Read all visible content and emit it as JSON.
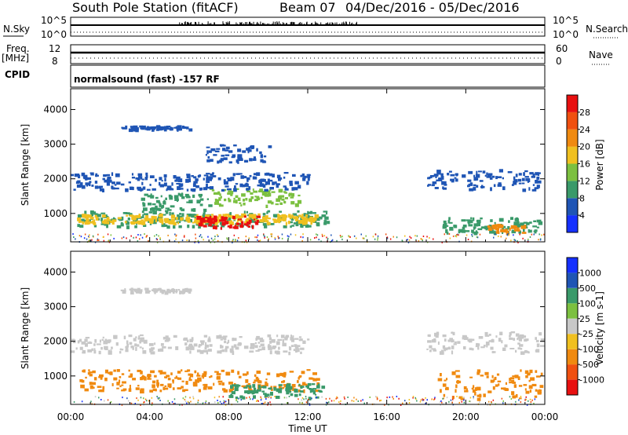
{
  "header": {
    "station": "South Pole Station (fitACF)",
    "beam": "Beam 07",
    "dates": "04/Dec/2016 - 05/Dec/2016"
  },
  "strips": {
    "nsky_label": "N.Sky",
    "nsky_tick_hi": "10^5",
    "nsky_tick_lo": "10^0",
    "nsearch_label": "N.Search",
    "nsearch_tick_hi": "10^5",
    "nsearch_tick_lo": "10^0",
    "freq_label": "Freq.",
    "freq_unit": "[MHz]",
    "freq_tick_hi": "12",
    "freq_tick_lo": "8",
    "nave_label": "Nave",
    "nave_tick_hi": "60",
    "nave_tick_lo": "0",
    "cpid_label": "CPID",
    "cpid_value": "normalsound (fast) -157 RF"
  },
  "chart_data": [
    {
      "type": "heatmap",
      "name": "power",
      "ylabel": "Slant Range [km]",
      "xlabel": "",
      "x_ticks": [
        "00:00",
        "04:00",
        "08:00",
        "12:00",
        "16:00",
        "20:00",
        "00:00"
      ],
      "x_tick_hours": [
        0,
        4,
        8,
        12,
        16,
        20,
        24
      ],
      "y_ticks": [
        1000,
        2000,
        3000,
        4000
      ],
      "ylim": [
        180,
        4600
      ],
      "xlim_hours": [
        0,
        24
      ],
      "colorbar": {
        "label": "Power [dB]",
        "ticks": [
          "4",
          "8",
          "12",
          "16",
          "20",
          "24",
          "28"
        ],
        "colors": [
          "#1530ff",
          "#1f55b5",
          "#3a9a6a",
          "#7cc040",
          "#f0c020",
          "#f08a10",
          "#f05010",
          "#e81010"
        ]
      },
      "bands": [
        {
          "x0": 0.3,
          "x1": 13.0,
          "r0": 650,
          "r1": 1100,
          "color": "#3a9a6a"
        },
        {
          "x0": 0.3,
          "x1": 12.5,
          "r0": 750,
          "r1": 1000,
          "color": "#f0c020"
        },
        {
          "x0": 6.3,
          "x1": 9.5,
          "r0": 600,
          "r1": 950,
          "color": "#e81010"
        },
        {
          "x0": 3.5,
          "x1": 7.0,
          "r0": 1100,
          "r1": 1600,
          "color": "#3a9a6a"
        },
        {
          "x0": 7.0,
          "x1": 11.5,
          "r0": 1250,
          "r1": 1750,
          "color": "#7cc040"
        },
        {
          "x0": 0.0,
          "x1": 12.0,
          "r0": 1700,
          "r1": 2200,
          "color": "#1f55b5"
        },
        {
          "x0": 2.5,
          "x1": 6.0,
          "r0": 3450,
          "r1": 3550,
          "color": "#1f55b5"
        },
        {
          "x0": 6.8,
          "x1": 10.0,
          "r0": 2500,
          "r1": 3000,
          "color": "#1f55b5"
        },
        {
          "x0": 18.0,
          "x1": 23.8,
          "r0": 1700,
          "r1": 2300,
          "color": "#1f55b5"
        },
        {
          "x0": 18.5,
          "x1": 23.8,
          "r0": 450,
          "r1": 900,
          "color": "#3a9a6a"
        },
        {
          "x0": 21.0,
          "x1": 23.0,
          "r0": 450,
          "r1": 700,
          "color": "#f08a10"
        }
      ]
    },
    {
      "type": "heatmap",
      "name": "velocity",
      "ylabel": "Slant Range [km]",
      "xlabel": "Time UT",
      "x_ticks": [
        "00:00",
        "04:00",
        "08:00",
        "12:00",
        "16:00",
        "20:00",
        "00:00"
      ],
      "x_tick_hours": [
        0,
        4,
        8,
        12,
        16,
        20,
        24
      ],
      "y_ticks": [
        1000,
        2000,
        3000,
        4000
      ],
      "ylim": [
        180,
        4600
      ],
      "xlim_hours": [
        0,
        24
      ],
      "colorbar": {
        "label": "Velocity [m s-1]",
        "ticks": [
          "1000",
          "500",
          "100",
          "25",
          "-25",
          "-100",
          "-500",
          "-1000"
        ],
        "colors": [
          "#1530ff",
          "#1f55b5",
          "#3a9a6a",
          "#7cc040",
          "#c8c8c8",
          "#f0c020",
          "#f08a10",
          "#f05010",
          "#e81010"
        ]
      },
      "bands": [
        {
          "x0": 0.3,
          "x1": 12.5,
          "r0": 600,
          "r1": 1200,
          "color": "#f08a10"
        },
        {
          "x0": 8.0,
          "x1": 12.8,
          "r0": 400,
          "r1": 800,
          "color": "#3a9a6a"
        },
        {
          "x0": 0.0,
          "x1": 12.0,
          "r0": 1700,
          "r1": 2200,
          "color": "#c8c8c8"
        },
        {
          "x0": 2.5,
          "x1": 6.0,
          "r0": 3450,
          "r1": 3550,
          "color": "#c8c8c8"
        },
        {
          "x0": 18.0,
          "x1": 23.8,
          "r0": 1700,
          "r1": 2300,
          "color": "#c8c8c8"
        },
        {
          "x0": 18.5,
          "x1": 23.8,
          "r0": 350,
          "r1": 1200,
          "color": "#f08a10"
        }
      ]
    }
  ]
}
